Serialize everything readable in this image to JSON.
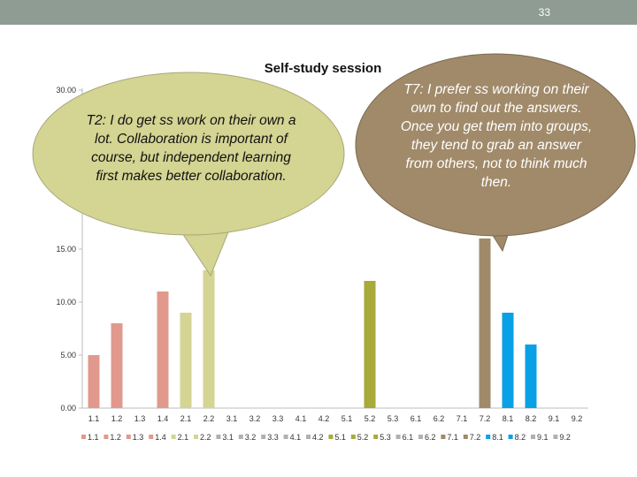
{
  "page": {
    "number": "33"
  },
  "chart_data": {
    "type": "bar",
    "title": "Self-study session",
    "xlabel": "",
    "ylabel": "",
    "ylim": [
      0,
      30
    ],
    "yticks": [
      0,
      5,
      10,
      15,
      30
    ],
    "ytick_labels": [
      "0.00",
      "5.00",
      "10.00",
      "15.00",
      "30.00"
    ],
    "categories": [
      "1.1",
      "1.2",
      "1.3",
      "1.4",
      "2.1",
      "2.2",
      "3.1",
      "3.2",
      "3.3",
      "4.1",
      "4.2",
      "5.1",
      "5.2",
      "5.3",
      "6.1",
      "6.2",
      "7.1",
      "7.2",
      "8.1",
      "8.2",
      "9.1",
      "9.2"
    ],
    "values": [
      5,
      8,
      0,
      11,
      9,
      13,
      0,
      0,
      0,
      0,
      0,
      0,
      12,
      0,
      0,
      0,
      0,
      16,
      9,
      6,
      0,
      0
    ],
    "colors": [
      "#e0998c",
      "#e0998c",
      "#e0998c",
      "#e0998c",
      "#d4d493",
      "#d4d493",
      "#b0b0b0",
      "#b0b0b0",
      "#b0b0b0",
      "#b0b0b0",
      "#b0b0b0",
      "#a8aa3a",
      "#a8aa3a",
      "#a8aa3a",
      "#b0b0b0",
      "#b0b0b0",
      "#a08a6a",
      "#a08a6a",
      "#0aa0e6",
      "#0aa0e6",
      "#b0b0b0",
      "#b0b0b0"
    ],
    "legend_position": "bottom",
    "grid": false
  },
  "callouts": {
    "t2": {
      "text": "T2: I do get ss work on their own a lot. Collaboration is important of course, but independent learning first makes better collaboration.",
      "color": "#d4d493"
    },
    "t7": {
      "text": "T7: I prefer ss working on their own to find out the answers. Once you get them into groups, they tend to grab an answer from others, not to think much then.",
      "color": "#a08a6a"
    }
  }
}
